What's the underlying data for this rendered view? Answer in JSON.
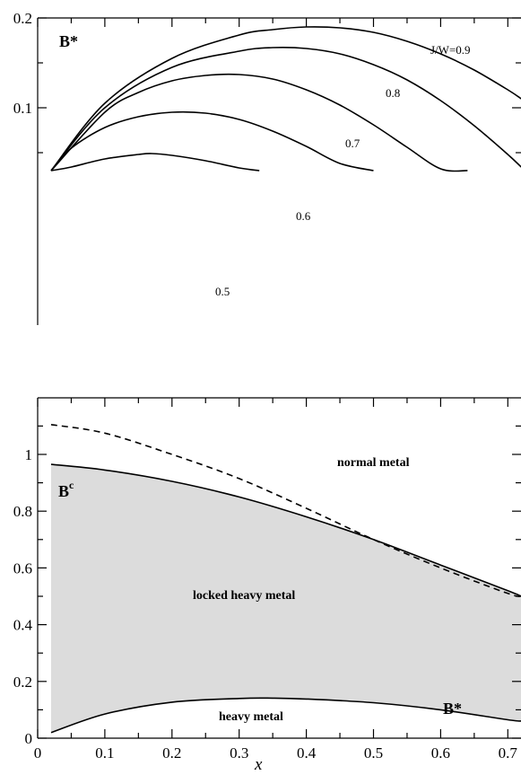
{
  "chart_data": [
    {
      "type": "line",
      "label": "B*",
      "xlim": [
        0,
        0.72
      ],
      "ylim": [
        0.03,
        0.2
      ],
      "ytick_labels": [
        "0.1",
        "0.2"
      ],
      "ytick_values": [
        0.1,
        0.2
      ],
      "series": [
        {
          "name": "J/W=0.9",
          "x": [
            0.02,
            0.1,
            0.2,
            0.3,
            0.35,
            0.4,
            0.45,
            0.5,
            0.55,
            0.6,
            0.65,
            0.7,
            0.72
          ],
          "y": [
            0.03,
            0.105,
            0.155,
            0.181,
            0.187,
            0.19,
            0.189,
            0.184,
            0.174,
            0.16,
            0.142,
            0.12,
            0.11
          ]
        },
        {
          "name": "0.8",
          "x": [
            0.02,
            0.1,
            0.2,
            0.3,
            0.35,
            0.4,
            0.45,
            0.5,
            0.55,
            0.6,
            0.65,
            0.7,
            0.72
          ],
          "y": [
            0.03,
            0.1,
            0.145,
            0.163,
            0.167,
            0.166,
            0.16,
            0.148,
            0.131,
            0.108,
            0.08,
            0.048,
            0.034
          ]
        },
        {
          "name": "0.7",
          "x": [
            0.02,
            0.1,
            0.15,
            0.2,
            0.25,
            0.3,
            0.35,
            0.4,
            0.45,
            0.5,
            0.55,
            0.6,
            0.64
          ],
          "y": [
            0.03,
            0.095,
            0.117,
            0.13,
            0.136,
            0.137,
            0.132,
            0.12,
            0.103,
            0.081,
            0.056,
            0.032,
            0.03
          ]
        },
        {
          "name": "0.6",
          "x": [
            0.02,
            0.05,
            0.1,
            0.15,
            0.2,
            0.25,
            0.3,
            0.35,
            0.4,
            0.45,
            0.5
          ],
          "y": [
            0.03,
            0.055,
            0.078,
            0.09,
            0.095,
            0.094,
            0.087,
            0.074,
            0.057,
            0.038,
            0.03
          ]
        },
        {
          "name": "0.5",
          "x": [
            0.02,
            0.05,
            0.1,
            0.15,
            0.17,
            0.2,
            0.25,
            0.3,
            0.33
          ],
          "y": [
            0.03,
            0.034,
            0.043,
            0.048,
            0.049,
            0.047,
            0.041,
            0.033,
            0.03
          ]
        }
      ]
    },
    {
      "type": "area",
      "xlabel": "x",
      "xlim": [
        0,
        0.72
      ],
      "ylim": [
        0,
        1.2
      ],
      "xtick_labels": [
        "0",
        "0.1",
        "0.2",
        "0.3",
        "0.4",
        "0.5",
        "0.6",
        "0.7"
      ],
      "xtick_values": [
        0,
        0.1,
        0.2,
        0.3,
        0.4,
        0.5,
        0.6,
        0.7
      ],
      "ytick_labels": [
        "0",
        "0.2",
        "0.4",
        "0.6",
        "0.8",
        "1"
      ],
      "ytick_values": [
        0,
        0.2,
        0.4,
        0.6,
        0.8,
        1
      ],
      "series": [
        {
          "name": "B^c",
          "style": "solid",
          "x": [
            0.02,
            0.1,
            0.2,
            0.3,
            0.4,
            0.5,
            0.6,
            0.7,
            0.72
          ],
          "y": [
            0.965,
            0.945,
            0.905,
            0.85,
            0.78,
            0.7,
            0.61,
            0.52,
            0.5
          ]
        },
        {
          "name": "",
          "style": "dashed",
          "x": [
            0.02,
            0.1,
            0.2,
            0.3,
            0.4,
            0.5,
            0.6,
            0.7,
            0.72
          ],
          "y": [
            1.105,
            1.075,
            1.0,
            0.915,
            0.81,
            0.7,
            0.6,
            0.51,
            0.5
          ]
        },
        {
          "name": "B*",
          "style": "solid",
          "x": [
            0.02,
            0.1,
            0.2,
            0.3,
            0.35,
            0.4,
            0.5,
            0.6,
            0.7,
            0.72
          ],
          "y": [
            0.02,
            0.085,
            0.127,
            0.14,
            0.141,
            0.138,
            0.125,
            0.1,
            0.065,
            0.06
          ]
        }
      ],
      "annotations": {
        "normal_metal": "normal metal",
        "locked_heavy_metal": "locked heavy metal",
        "heavy_metal": "heavy metal",
        "bc_main": "B",
        "bc_sup": "c",
        "bstar": "B*"
      },
      "fill_color": "#dcdcdc"
    }
  ]
}
